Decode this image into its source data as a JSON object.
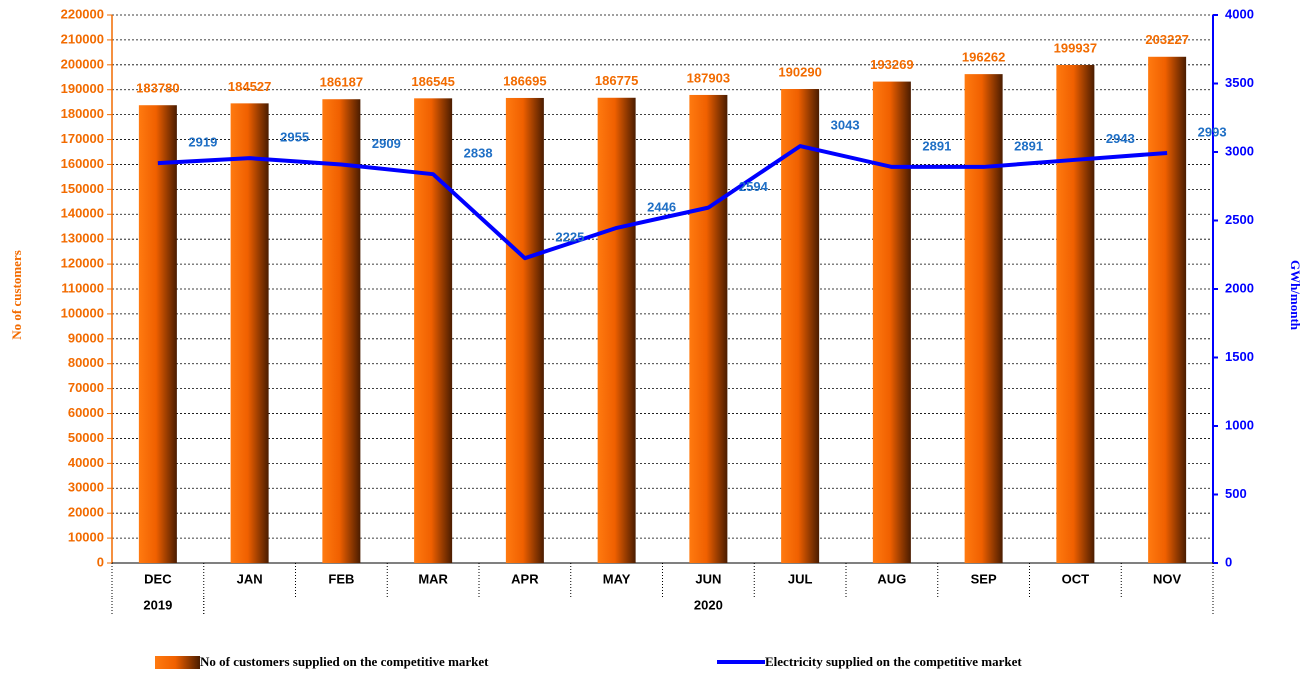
{
  "chart_data": {
    "type": "bar-line",
    "categories": [
      "DEC",
      "JAN",
      "FEB",
      "MAR",
      "APR",
      "MAY",
      "JUN",
      "JUL",
      "AUG",
      "SEP",
      "OCT",
      "NOV"
    ],
    "category_groups": [
      {
        "label": "2019",
        "count": 1
      },
      {
        "label": "2020",
        "count": 11
      }
    ],
    "series": [
      {
        "name": "No of  customers supplied on the competitive market",
        "type": "bar",
        "color": "#f26b00",
        "label_color": "#f26b00",
        "values": [
          183780,
          184527,
          186187,
          186545,
          186695,
          186775,
          187903,
          190290,
          193269,
          196262,
          199937,
          203227
        ]
      },
      {
        "name": "Electricity supplied on the competitive market",
        "type": "line",
        "axis": "y2",
        "color": "#0000ff",
        "label_color": "#1f6fc5",
        "values": [
          2919,
          2955,
          2909,
          2838,
          2225,
          2446,
          2594,
          3043,
          2891,
          2891,
          2943,
          2993
        ]
      }
    ],
    "ylabel": "No of customers",
    "y2label": "GWh/month",
    "ylim": [
      0,
      220000
    ],
    "yticks": [
      0,
      10000,
      20000,
      30000,
      40000,
      50000,
      60000,
      70000,
      80000,
      90000,
      100000,
      110000,
      120000,
      130000,
      140000,
      150000,
      160000,
      170000,
      180000,
      190000,
      200000,
      210000,
      220000
    ],
    "y2lim": [
      0,
      4000
    ],
    "y2ticks": [
      0,
      500,
      1000,
      1500,
      2000,
      2500,
      3000,
      3500,
      4000
    ],
    "grid": true
  }
}
